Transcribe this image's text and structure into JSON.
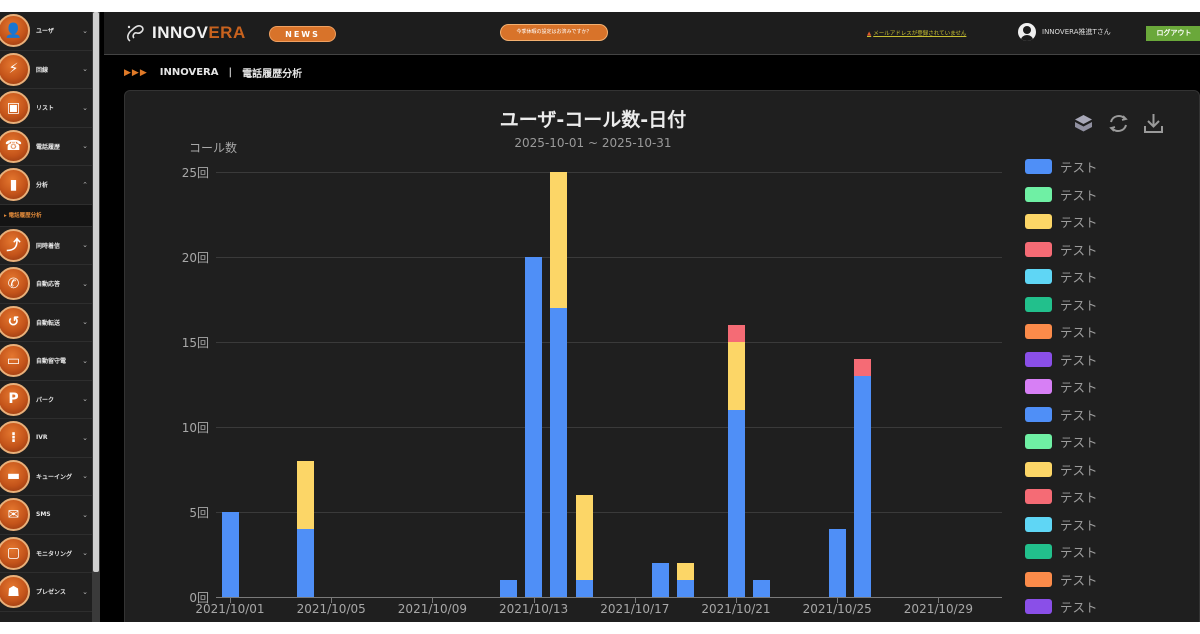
{
  "sidebar": {
    "items": [
      {
        "label": "ユーザ",
        "icon": "user-icon",
        "glyph": "👤",
        "chev": "⌄"
      },
      {
        "label": "回線",
        "icon": "line-icon",
        "glyph": "⚡",
        "chev": "⌄"
      },
      {
        "label": "リスト",
        "icon": "list-icon",
        "glyph": "▣",
        "chev": "⌄"
      },
      {
        "label": "電話履歴",
        "icon": "phone-history-icon",
        "glyph": "☎",
        "chev": "⌄"
      },
      {
        "label": "分析",
        "icon": "analysis-icon",
        "glyph": "▮",
        "chev": "⌃"
      },
      {
        "label": "同時着信",
        "icon": "simultaneous-ring-icon",
        "glyph": "⤴",
        "chev": "⌄"
      },
      {
        "label": "自動応答",
        "icon": "auto-answer-icon",
        "glyph": "✆",
        "chev": "⌄"
      },
      {
        "label": "自動転送",
        "icon": "auto-forward-icon",
        "glyph": "↺",
        "chev": "⌄"
      },
      {
        "label": "自動留守電",
        "icon": "voicemail-icon",
        "glyph": "▭",
        "chev": "⌄"
      },
      {
        "label": "パーク",
        "icon": "park-icon",
        "glyph": "P",
        "chev": "⌄"
      },
      {
        "label": "IVR",
        "icon": "ivr-icon",
        "glyph": "⁝",
        "chev": "⌄"
      },
      {
        "label": "キューイング",
        "icon": "queuing-icon",
        "glyph": "▬",
        "chev": "⌄"
      },
      {
        "label": "SMS",
        "icon": "sms-icon",
        "glyph": "✉",
        "chev": "⌄"
      },
      {
        "label": "モニタリング",
        "icon": "monitoring-icon",
        "glyph": "▢",
        "chev": "⌄"
      },
      {
        "label": "プレゼンス",
        "icon": "presence-icon",
        "glyph": "☗",
        "chev": "⌄"
      }
    ],
    "sub_item": "▸ 電話履歴分析"
  },
  "header": {
    "logo_main": "INNOV",
    "logo_accent": "ERA",
    "news": "NEWS",
    "notice": "今季休暇の設定はお済みですか？",
    "warning": "メールアドレスが登録されていません",
    "warning_icon": "▲",
    "user_name": "INNOVERA推進Tさん",
    "logout": "ログアウト"
  },
  "breadcrumb": {
    "arrows": "▶▶▶",
    "root": "INNOVERA",
    "sep": "|",
    "page": "電話履歴分析"
  },
  "chart_data": {
    "type": "bar",
    "stacked": true,
    "title": "ユーザ-コール数-日付",
    "subtitle": "2025-10-01 ~ 2025-10-31",
    "ylabel": "コール数",
    "xlabel": "",
    "ylim": [
      0,
      25
    ],
    "yticks": [
      "0回",
      "5回",
      "10回",
      "15回",
      "20回",
      "25回"
    ],
    "xticks": [
      "2021/10/01",
      "2021/10/05",
      "2021/10/09",
      "2021/10/13",
      "2021/10/17",
      "2021/10/21",
      "2021/10/25",
      "2021/10/29"
    ],
    "grid": true,
    "legend_position": "right",
    "categories": [
      "2021/10/01",
      "2021/10/04",
      "2021/10/12",
      "2021/10/13",
      "2021/10/14",
      "2021/10/15",
      "2021/10/18",
      "2021/10/19",
      "2021/10/21",
      "2021/10/22",
      "2021/10/25",
      "2021/10/26"
    ],
    "day_index": [
      0,
      3,
      11,
      12,
      13,
      14,
      17,
      18,
      20,
      21,
      24,
      25
    ],
    "series": [
      {
        "name": "テスト",
        "color": "#4f8ff7",
        "values": [
          5,
          4,
          1,
          20,
          17,
          1,
          2,
          1,
          11,
          1,
          4,
          13
        ]
      },
      {
        "name": "テスト",
        "color": "#fcd667",
        "values": [
          0,
          4,
          0,
          0,
          8,
          5,
          0,
          1,
          4,
          0,
          0,
          0
        ]
      },
      {
        "name": "テスト",
        "color": "#f56b75",
        "values": [
          0,
          0,
          0,
          0,
          0,
          0,
          0,
          0,
          1,
          0,
          0,
          1
        ]
      }
    ],
    "legend": [
      {
        "label": "テスト",
        "color": "#4f8ff7"
      },
      {
        "label": "テスト",
        "color": "#6ff0a4"
      },
      {
        "label": "テスト",
        "color": "#fcd667"
      },
      {
        "label": "テスト",
        "color": "#f56b75"
      },
      {
        "label": "テスト",
        "color": "#5fd6f5"
      },
      {
        "label": "テスト",
        "color": "#22c08c"
      },
      {
        "label": "テスト",
        "color": "#fb8b4a"
      },
      {
        "label": "テスト",
        "color": "#8a4fe8"
      },
      {
        "label": "テスト",
        "color": "#d77ff5"
      },
      {
        "label": "テスト",
        "color": "#4f8ff7"
      },
      {
        "label": "テスト",
        "color": "#6ff0a4"
      },
      {
        "label": "テスト",
        "color": "#fcd667"
      },
      {
        "label": "テスト",
        "color": "#f56b75"
      },
      {
        "label": "テスト",
        "color": "#5fd6f5"
      },
      {
        "label": "テスト",
        "color": "#22c08c"
      },
      {
        "label": "テスト",
        "color": "#fb8b4a"
      },
      {
        "label": "テスト",
        "color": "#8a4fe8"
      }
    ]
  },
  "toolbox": {
    "stack_toggle": "stack-icon",
    "refresh": "refresh-icon",
    "download": "download-icon"
  }
}
